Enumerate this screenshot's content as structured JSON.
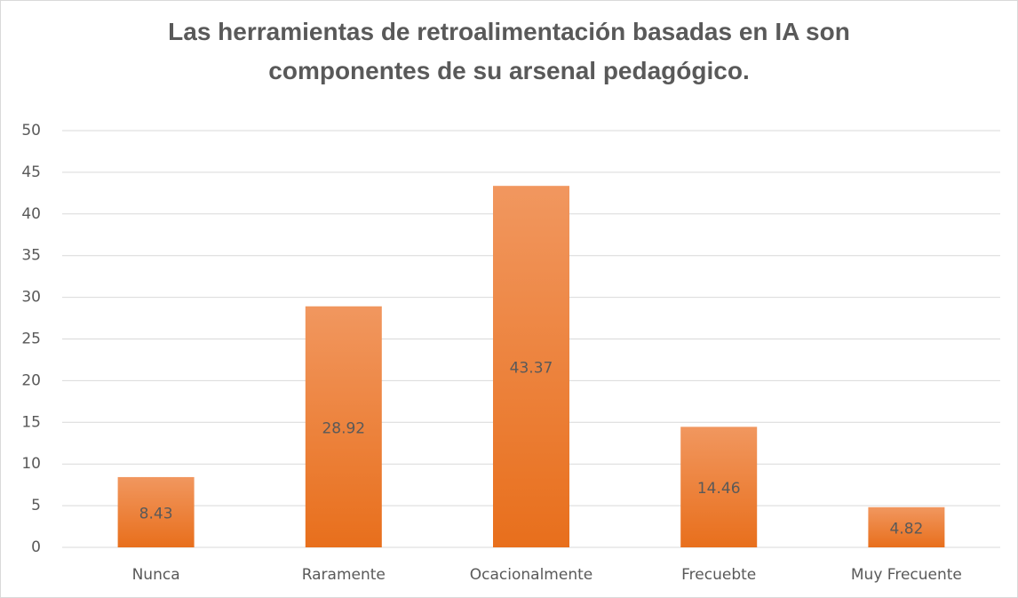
{
  "chart_data": {
    "type": "bar",
    "title": "Las herramientas de retroalimentación basadas en IA son componentes de su arsenal pedagógico.",
    "categories": [
      "Nunca",
      "Raramente",
      "Ocacionalmente",
      "Frecuebte",
      "Muy Frecuente"
    ],
    "values": [
      8.43,
      28.92,
      43.37,
      14.46,
      4.82
    ],
    "color": "#ed7d31",
    "ylim": [
      0,
      50
    ],
    "yticks": [
      0,
      5,
      10,
      15,
      20,
      25,
      30,
      35,
      40,
      45,
      50
    ],
    "grid": true
  }
}
